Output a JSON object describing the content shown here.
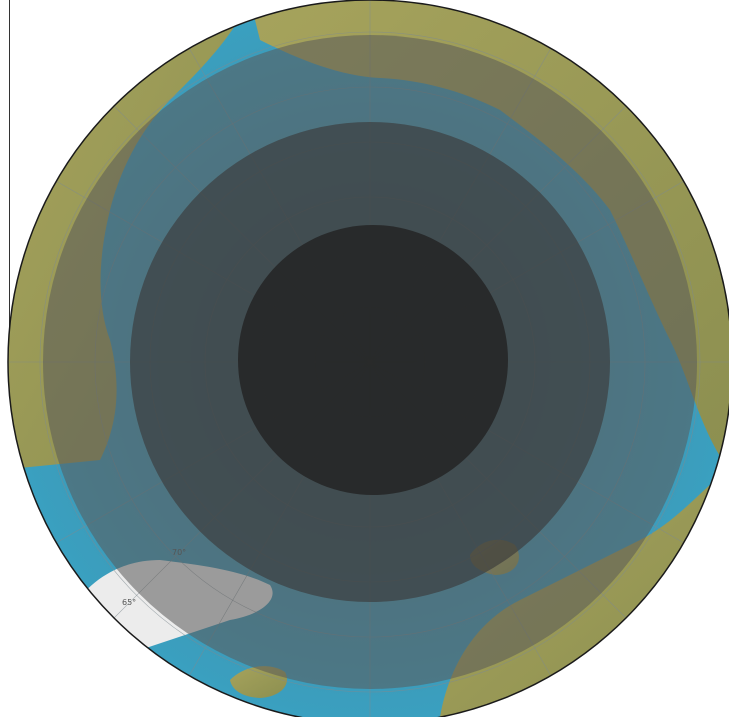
{
  "map": {
    "projection": "north-polar-stereographic",
    "colors": {
      "ocean": "#3f9ab8",
      "ocean_deep": "#2c6f9c",
      "land": "#9a9a52",
      "land_light": "#b7b46a",
      "ice": "#f4f4f4",
      "ring_outer": "#5a5a5a",
      "ring_middle": "#3a3a3a",
      "ring_inner": "#222222",
      "border": "#1a1a1a"
    },
    "latitude_labels": [
      "70°",
      "65°"
    ],
    "shaded_zones": [
      {
        "name": "zone-outer",
        "opacity": 0.55
      },
      {
        "name": "zone-middle",
        "opacity": 0.65
      },
      {
        "name": "zone-inner",
        "opacity": 0.8
      }
    ]
  }
}
